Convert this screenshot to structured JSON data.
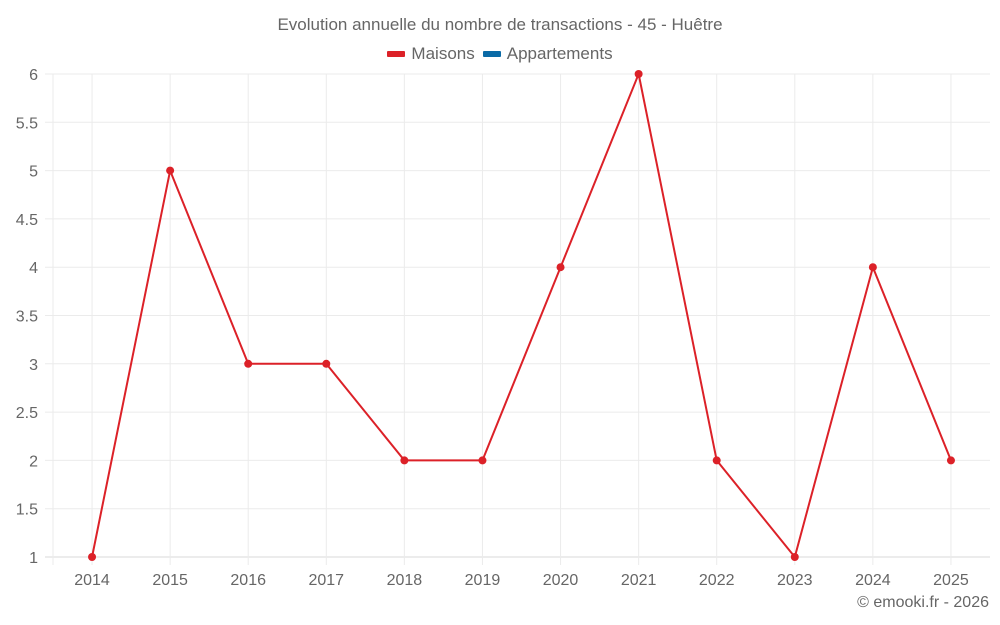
{
  "chart_title": "Evolution annuelle du nombre de transactions - 45 - Huêtre",
  "legend": [
    {
      "label": "Maisons",
      "color": "#dc2128"
    },
    {
      "label": "Appartements",
      "color": "#0a6aa6"
    }
  ],
  "footer": "© emooki.fr - 2026",
  "chart_data": {
    "type": "line",
    "title": "Evolution annuelle du nombre de transactions - 45 - Huêtre",
    "xlabel": "",
    "ylabel": "",
    "categories": [
      "2014",
      "2015",
      "2016",
      "2017",
      "2018",
      "2019",
      "2020",
      "2021",
      "2022",
      "2023",
      "2024",
      "2025"
    ],
    "series": [
      {
        "name": "Maisons",
        "color": "#dc2128",
        "values": [
          1,
          5,
          3,
          3,
          2,
          2,
          4,
          6,
          2,
          1,
          4,
          2
        ]
      },
      {
        "name": "Appartements",
        "color": "#0a6aa6",
        "values": []
      }
    ],
    "ylim": [
      1,
      6
    ],
    "yticks": [
      "1",
      "1.5",
      "2",
      "2.5",
      "3",
      "3.5",
      "4",
      "4.5",
      "5",
      "5.5",
      "6"
    ],
    "grid": true,
    "legend_position": "top"
  }
}
